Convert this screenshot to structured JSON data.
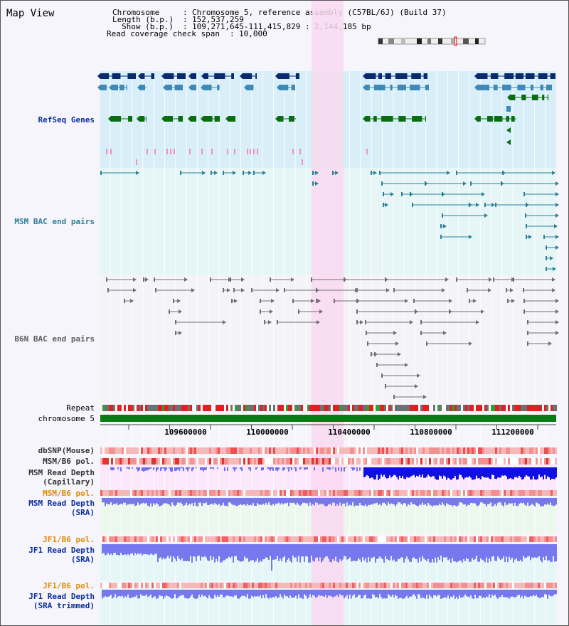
{
  "view_title": "Map View",
  "header": {
    "chromosome_label": "Chromosome",
    "chromosome_value": "Chromosome 5, reference assembly (C57BL/6J) (Build 37)",
    "length_label": "Length (b.p.)",
    "length_value": "152,537,259",
    "show_label": "Show (b.p.)",
    "show_value": "109,271,645-111,415,829 : 2,144,185 bp",
    "coverage_label": "Read coverage check span",
    "coverage_value": "10,000"
  },
  "tracks": {
    "refseq": "RefSeq Genes",
    "msm_bac": "MSM BAC end pairs",
    "b6n_bac": "B6N BAC end pairs",
    "repeat": "Repeat",
    "chromosome": "chromosome 5",
    "dbsnp": "dbSNP(Mouse)",
    "msm_b6_pol": "MSM/B6 pol.",
    "msm_depth_cap_1": "MSM Read Depth",
    "msm_depth_cap_2": "(Capillary)",
    "msm_b6_pol_2": "MSM/B6 pol.",
    "msm_depth_sra_1": "MSM Read Depth",
    "msm_depth_sra_2": "(SRA)",
    "jf1_b6_pol": "JF1/B6 pol.",
    "jf1_depth_sra_1": "JF1 Read Depth",
    "jf1_depth_sra_2": "(SRA)",
    "jf1_b6_pol_2": "JF1/B6 pol.",
    "jf1_depth_trim_1": "JF1 Read Depth",
    "jf1_depth_trim_2": "(SRA trimmed)"
  },
  "axis": {
    "ticks": [
      "109600000",
      "110000000",
      "110400000",
      "110800000",
      "111200000"
    ]
  },
  "colors": {
    "refseq_dark": "#0a2a6e",
    "refseq_mid": "#3d8ab8",
    "refseq_green": "#0a6e10",
    "msm_bac": "#2e7f9a",
    "b6n_bac": "#707070",
    "highlight": "#f9d8f0",
    "depth_capillary": "#1010e0",
    "depth_sra": "#7777ee",
    "label_blue": "#0b2e9e",
    "label_orange": "#e08a00"
  }
}
